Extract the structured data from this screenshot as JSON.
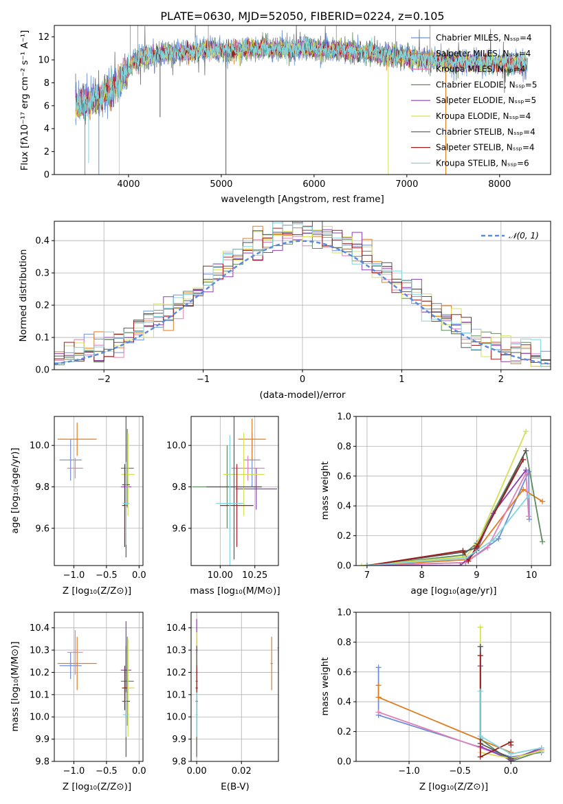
{
  "colors": [
    "#6a8fd8",
    "#e07b20",
    "#e27fb5",
    "#5e8a5e",
    "#8b3fb0",
    "#d5e050",
    "#555555",
    "#a01c1c",
    "#80d5dc"
  ],
  "spectrum": {
    "title": "PLATE=0630, MJD=52050, FIBERID=0224, z=0.105",
    "xlabel": "wavelength [Angstrom, rest frame]",
    "ylabel": "Flux [fλ10⁻¹⁷ erg cm⁻² s⁻¹ A⁻¹]",
    "xticks": [
      "4000",
      "5000",
      "6000",
      "7000",
      "8000"
    ],
    "yticks": [
      "0",
      "2",
      "4",
      "6",
      "8",
      "10",
      "12"
    ],
    "legend": [
      "Chabrier MILES, Nₛₛₚ=4",
      "Salpeter MILES, Nₛₛₚ=4",
      "Kroupa MILES, Nₛₛₚ=4",
      "Chabrier ELODIE, Nₛₛₚ=5",
      "Salpeter ELODIE, Nₛₛₚ=5",
      "Kroupa ELODIE, Nₛₛₚ=4",
      "Chabrier STELIB, Nₛₛₚ=4",
      "Salpeter STELIB, Nₛₛₚ=4",
      "Kroupa STELIB, Nₛₛₚ=6"
    ]
  },
  "residual": {
    "xlabel": "(data-model)/error",
    "ylabel": "Normed distribution",
    "xticks": [
      "−2",
      "−1",
      "0",
      "1",
      "2"
    ],
    "yticks": [
      "0.0",
      "0.1",
      "0.2",
      "0.3",
      "0.4"
    ],
    "legend": "𝒩(0, 1)"
  },
  "panels": {
    "age_vs_z": {
      "xlabel": "Z [log₁₀(Z/Z⊙)]",
      "ylabel": "age  [log₁₀(age/yr)]",
      "xticks": [
        "−1.0",
        "−0.5",
        "0.0"
      ],
      "yticks": [
        "9.6",
        "9.8",
        "10.0"
      ]
    },
    "age_vs_mass": {
      "xlabel": "mass [log₁₀(M/M⊙)]",
      "xticks": [
        "10.00",
        "10.25"
      ],
      "yticks": [
        "9.6",
        "9.8",
        "10.0"
      ]
    },
    "weight_vs_age": {
      "xlabel": "age  [log₁₀(age/yr)]",
      "ylabel": "mass weight",
      "xticks": [
        "7",
        "8",
        "9",
        "10"
      ],
      "yticks": [
        "0.0",
        "0.2",
        "0.4",
        "0.6",
        "0.8",
        "1.0"
      ]
    },
    "mass_vs_z": {
      "xlabel": "Z [log₁₀(Z/Z⊙)]",
      "ylabel": "mass [log₁₀(M/M⊙)]",
      "xticks": [
        "−1.0",
        "−0.5",
        "0.0"
      ],
      "yticks": [
        "9.8",
        "9.9",
        "10.0",
        "10.1",
        "10.2",
        "10.3",
        "10.4"
      ]
    },
    "mass_vs_ebv": {
      "xlabel": "E(B-V)",
      "xticks": [
        "0.00",
        "0.02"
      ],
      "yticks": [
        "9.8",
        "9.9",
        "10.0",
        "10.1",
        "10.2",
        "10.3",
        "10.4"
      ]
    },
    "weight_vs_z": {
      "xlabel": "Z [log₁₀(Z/Z⊙)]",
      "ylabel": "mass weight",
      "xticks": [
        "−1.0",
        "−0.5",
        "0.0"
      ],
      "yticks": [
        "0.0",
        "0.2",
        "0.4",
        "0.6",
        "0.8",
        "1.0"
      ]
    }
  },
  "chart_data": [
    {
      "type": "line",
      "name": "spectrum",
      "xlim": [
        3200,
        8550
      ],
      "ylim": [
        0,
        13
      ],
      "anchors": [
        [
          3430,
          6.0
        ],
        [
          3550,
          6.3
        ],
        [
          3650,
          6.6
        ],
        [
          3750,
          7.0
        ],
        [
          3850,
          7.6
        ],
        [
          3950,
          8.6
        ],
        [
          4050,
          9.7
        ],
        [
          4150,
          10.2
        ],
        [
          4300,
          10.4
        ],
        [
          4500,
          10.6
        ],
        [
          4700,
          10.7
        ],
        [
          4900,
          10.9
        ],
        [
          5100,
          10.8
        ],
        [
          5300,
          11.0
        ],
        [
          5500,
          11.0
        ],
        [
          5700,
          10.9
        ],
        [
          5900,
          11.0
        ],
        [
          6100,
          10.9
        ],
        [
          6300,
          10.8
        ],
        [
          6500,
          10.7
        ],
        [
          6700,
          10.5
        ],
        [
          6900,
          10.3
        ],
        [
          7100,
          10.1
        ],
        [
          7300,
          9.9
        ],
        [
          7500,
          9.8
        ],
        [
          7700,
          9.8
        ],
        [
          7900,
          9.7
        ],
        [
          8100,
          9.7
        ],
        [
          8300,
          9.6
        ]
      ],
      "dips": [
        [
          3530,
          0
        ],
        [
          3570,
          1
        ],
        [
          3680,
          0
        ],
        [
          3900,
          0
        ],
        [
          4340,
          5
        ],
        [
          5050,
          0
        ],
        [
          6800,
          0
        ],
        [
          7420,
          0
        ]
      ],
      "spikes": [
        [
          4020,
          13
        ],
        [
          4100,
          13
        ],
        [
          4860,
          13
        ],
        [
          6240,
          13
        ],
        [
          6880,
          13
        ],
        [
          7250,
          13
        ]
      ]
    },
    {
      "type": "bar",
      "name": "residual",
      "xlim": [
        -2.5,
        2.5
      ],
      "ylim": [
        0,
        0.46
      ],
      "bins": [
        -2.5,
        -2.4,
        -2.3,
        -2.2,
        -2.1,
        -2.0,
        -1.9,
        -1.8,
        -1.7,
        -1.6,
        -1.5,
        -1.4,
        -1.3,
        -1.2,
        -1.1,
        -1.0,
        -0.9,
        -0.8,
        -0.7,
        -0.6,
        -0.5,
        -0.4,
        -0.3,
        -0.2,
        -0.1,
        0.0,
        0.1,
        0.2,
        0.3,
        0.4,
        0.5,
        0.6,
        0.7,
        0.8,
        0.9,
        1.0,
        1.1,
        1.2,
        1.3,
        1.4,
        1.5,
        1.6,
        1.7,
        1.8,
        1.9,
        2.0,
        2.1,
        2.2,
        2.3,
        2.4,
        2.5
      ],
      "gaussian": {
        "mu": 0,
        "sigma": 1
      }
    },
    {
      "type": "scatter",
      "name": "age_vs_z",
      "xlim": [
        -1.3,
        0.06
      ],
      "ylim": [
        9.42,
        10.14
      ],
      "points": [
        [
          -1.05,
          9.93,
          0.17,
          0.1
        ],
        [
          -0.95,
          10.03,
          0.3,
          0.08
        ],
        [
          -0.98,
          9.89,
          0.12,
          0.05
        ],
        [
          -0.18,
          9.89,
          0.1,
          0.19
        ],
        [
          -0.2,
          9.8,
          0.08,
          0.08
        ],
        [
          -0.17,
          9.86,
          0.1,
          0.2
        ],
        [
          -0.2,
          9.81,
          0.06,
          0.35
        ],
        [
          -0.22,
          9.71,
          0.04,
          0.2
        ],
        [
          -0.2,
          9.72,
          0.05,
          0.2
        ]
      ]
    },
    {
      "type": "scatter",
      "name": "age_vs_mass",
      "xlim": [
        9.79,
        10.42
      ],
      "ylim": [
        9.42,
        10.14
      ],
      "points": [
        [
          10.23,
          9.93,
          0.06,
          0.13
        ],
        [
          10.23,
          10.03,
          0.1,
          0.1
        ],
        [
          10.2,
          9.89,
          0.12,
          0.06
        ],
        [
          10.05,
          9.8,
          0.25,
          0.2
        ],
        [
          10.26,
          9.79,
          0.15,
          0.1
        ],
        [
          10.17,
          9.86,
          0.15,
          0.2
        ],
        [
          10.1,
          9.8,
          0.2,
          0.35
        ],
        [
          10.12,
          9.71,
          0.12,
          0.2
        ],
        [
          10.07,
          9.72,
          0.1,
          0.33
        ]
      ]
    },
    {
      "type": "line",
      "name": "weight_vs_age",
      "xlim": [
        6.8,
        10.35
      ],
      "ylim": [
        0,
        1
      ],
      "series": [
        [
          [
            7.0,
            0.0
          ],
          [
            8.8,
            0.02
          ],
          [
            9.4,
            0.18
          ],
          [
            9.95,
            0.63
          ],
          [
            9.96,
            0.31
          ]
        ],
        [
          [
            7.0,
            0.0
          ],
          [
            8.85,
            0.04
          ],
          [
            9.0,
            0.1
          ],
          [
            9.85,
            0.51
          ],
          [
            10.2,
            0.43
          ]
        ],
        [
          [
            7.0,
            0.0
          ],
          [
            8.8,
            0.02
          ],
          [
            9.2,
            0.12
          ],
          [
            9.9,
            0.62
          ],
          [
            9.95,
            0.33
          ]
        ],
        [
          [
            7.0,
            0.0
          ],
          [
            8.75,
            0.07
          ],
          [
            9.0,
            0.15
          ],
          [
            9.9,
            0.77
          ],
          [
            10.2,
            0.16
          ]
        ],
        [
          [
            7.0,
            0.0
          ],
          [
            8.7,
            0.0
          ],
          [
            9.0,
            0.1
          ],
          [
            9.3,
            0.35
          ],
          [
            9.9,
            0.64
          ]
        ],
        [
          [
            6.9,
            0.0
          ],
          [
            8.8,
            0.06
          ],
          [
            9.0,
            0.14
          ],
          [
            9.9,
            0.9
          ]
        ],
        [
          [
            7.0,
            0.0
          ],
          [
            8.75,
            0.09
          ],
          [
            9.0,
            0.12
          ],
          [
            9.9,
            0.77
          ]
        ],
        [
          [
            7.0,
            0.0
          ],
          [
            8.75,
            0.1
          ],
          [
            8.85,
            0.03
          ],
          [
            9.0,
            0.13
          ],
          [
            9.85,
            0.71
          ]
        ],
        [
          [
            7.0,
            0.0
          ],
          [
            8.8,
            0.05
          ],
          [
            9.3,
            0.17
          ],
          [
            9.95,
            0.47
          ]
        ]
      ]
    },
    {
      "type": "scatter",
      "name": "mass_vs_z",
      "xlim": [
        -1.3,
        0.06
      ],
      "ylim": [
        9.8,
        10.47
      ],
      "points": [
        [
          -1.05,
          10.23,
          0.17,
          0.06
        ],
        [
          -0.95,
          10.24,
          0.3,
          0.12
        ],
        [
          -0.98,
          10.29,
          0.12,
          0.1
        ],
        [
          -0.18,
          10.16,
          0.1,
          0.2
        ],
        [
          -0.2,
          10.21,
          0.08,
          0.22
        ],
        [
          -0.17,
          10.13,
          0.1,
          0.22
        ],
        [
          -0.2,
          10.07,
          0.06,
          0.25
        ],
        [
          -0.22,
          10.13,
          0.04,
          0.1
        ],
        [
          -0.2,
          10.01,
          0.05,
          0.1
        ]
      ]
    },
    {
      "type": "scatter",
      "name": "mass_vs_ebv",
      "xlim": [
        -0.0025,
        0.0365
      ],
      "ylim": [
        9.8,
        10.47
      ],
      "points": [
        [
          0.0,
          10.2,
          0.0005,
          0.06
        ],
        [
          0.0335,
          10.24,
          0.0005,
          0.12
        ],
        [
          0.0365,
          10.31,
          0.0005,
          0.08
        ],
        [
          0.0,
          10.16,
          0.0005,
          0.2
        ],
        [
          0.0,
          10.3,
          0.0005,
          0.14
        ],
        [
          0.0,
          10.13,
          0.0005,
          0.25
        ],
        [
          0.0,
          10.07,
          0.0005,
          0.25
        ],
        [
          0.0,
          10.13,
          0.0005,
          0.1
        ],
        [
          0.0,
          10.01,
          0.0005,
          0.1
        ]
      ]
    },
    {
      "type": "line",
      "name": "weight_vs_z",
      "xlim": [
        -1.52,
        0.39
      ],
      "ylim": [
        0,
        1
      ],
      "series": [
        [
          [
            -1.3,
            0.63
          ],
          [
            -1.3,
            0.31
          ],
          [
            0.0,
            0.03
          ],
          [
            0.3,
            0.06
          ]
        ],
        [
          [
            -1.3,
            0.51
          ],
          [
            -1.3,
            0.43
          ],
          [
            0.0,
            0.06
          ]
        ],
        [
          [
            -1.3,
            0.33
          ],
          [
            0.0,
            0.02
          ],
          [
            0.3,
            0.08
          ]
        ],
        [
          [
            -0.3,
            0.77
          ],
          [
            -0.3,
            0.15
          ],
          [
            0.0,
            0.0
          ],
          [
            0.3,
            0.07
          ]
        ],
        [
          [
            -0.3,
            0.64
          ],
          [
            -0.3,
            0.1
          ],
          [
            0.0,
            0.01
          ],
          [
            0.3,
            0.09
          ]
        ],
        [
          [
            -0.3,
            0.9
          ],
          [
            -0.3,
            0.06
          ],
          [
            0.0,
            0.02
          ],
          [
            0.3,
            0.07
          ]
        ],
        [
          [
            -0.3,
            0.77
          ],
          [
            -0.3,
            0.12
          ],
          [
            0.0,
            0.02
          ]
        ],
        [
          [
            -0.3,
            0.71
          ],
          [
            -0.3,
            0.03
          ],
          [
            0.0,
            0.13
          ],
          [
            0.0,
            0.11
          ]
        ],
        [
          [
            -0.3,
            0.47
          ],
          [
            -0.3,
            0.17
          ],
          [
            0.0,
            0.05
          ],
          [
            0.3,
            0.09
          ]
        ]
      ]
    }
  ]
}
